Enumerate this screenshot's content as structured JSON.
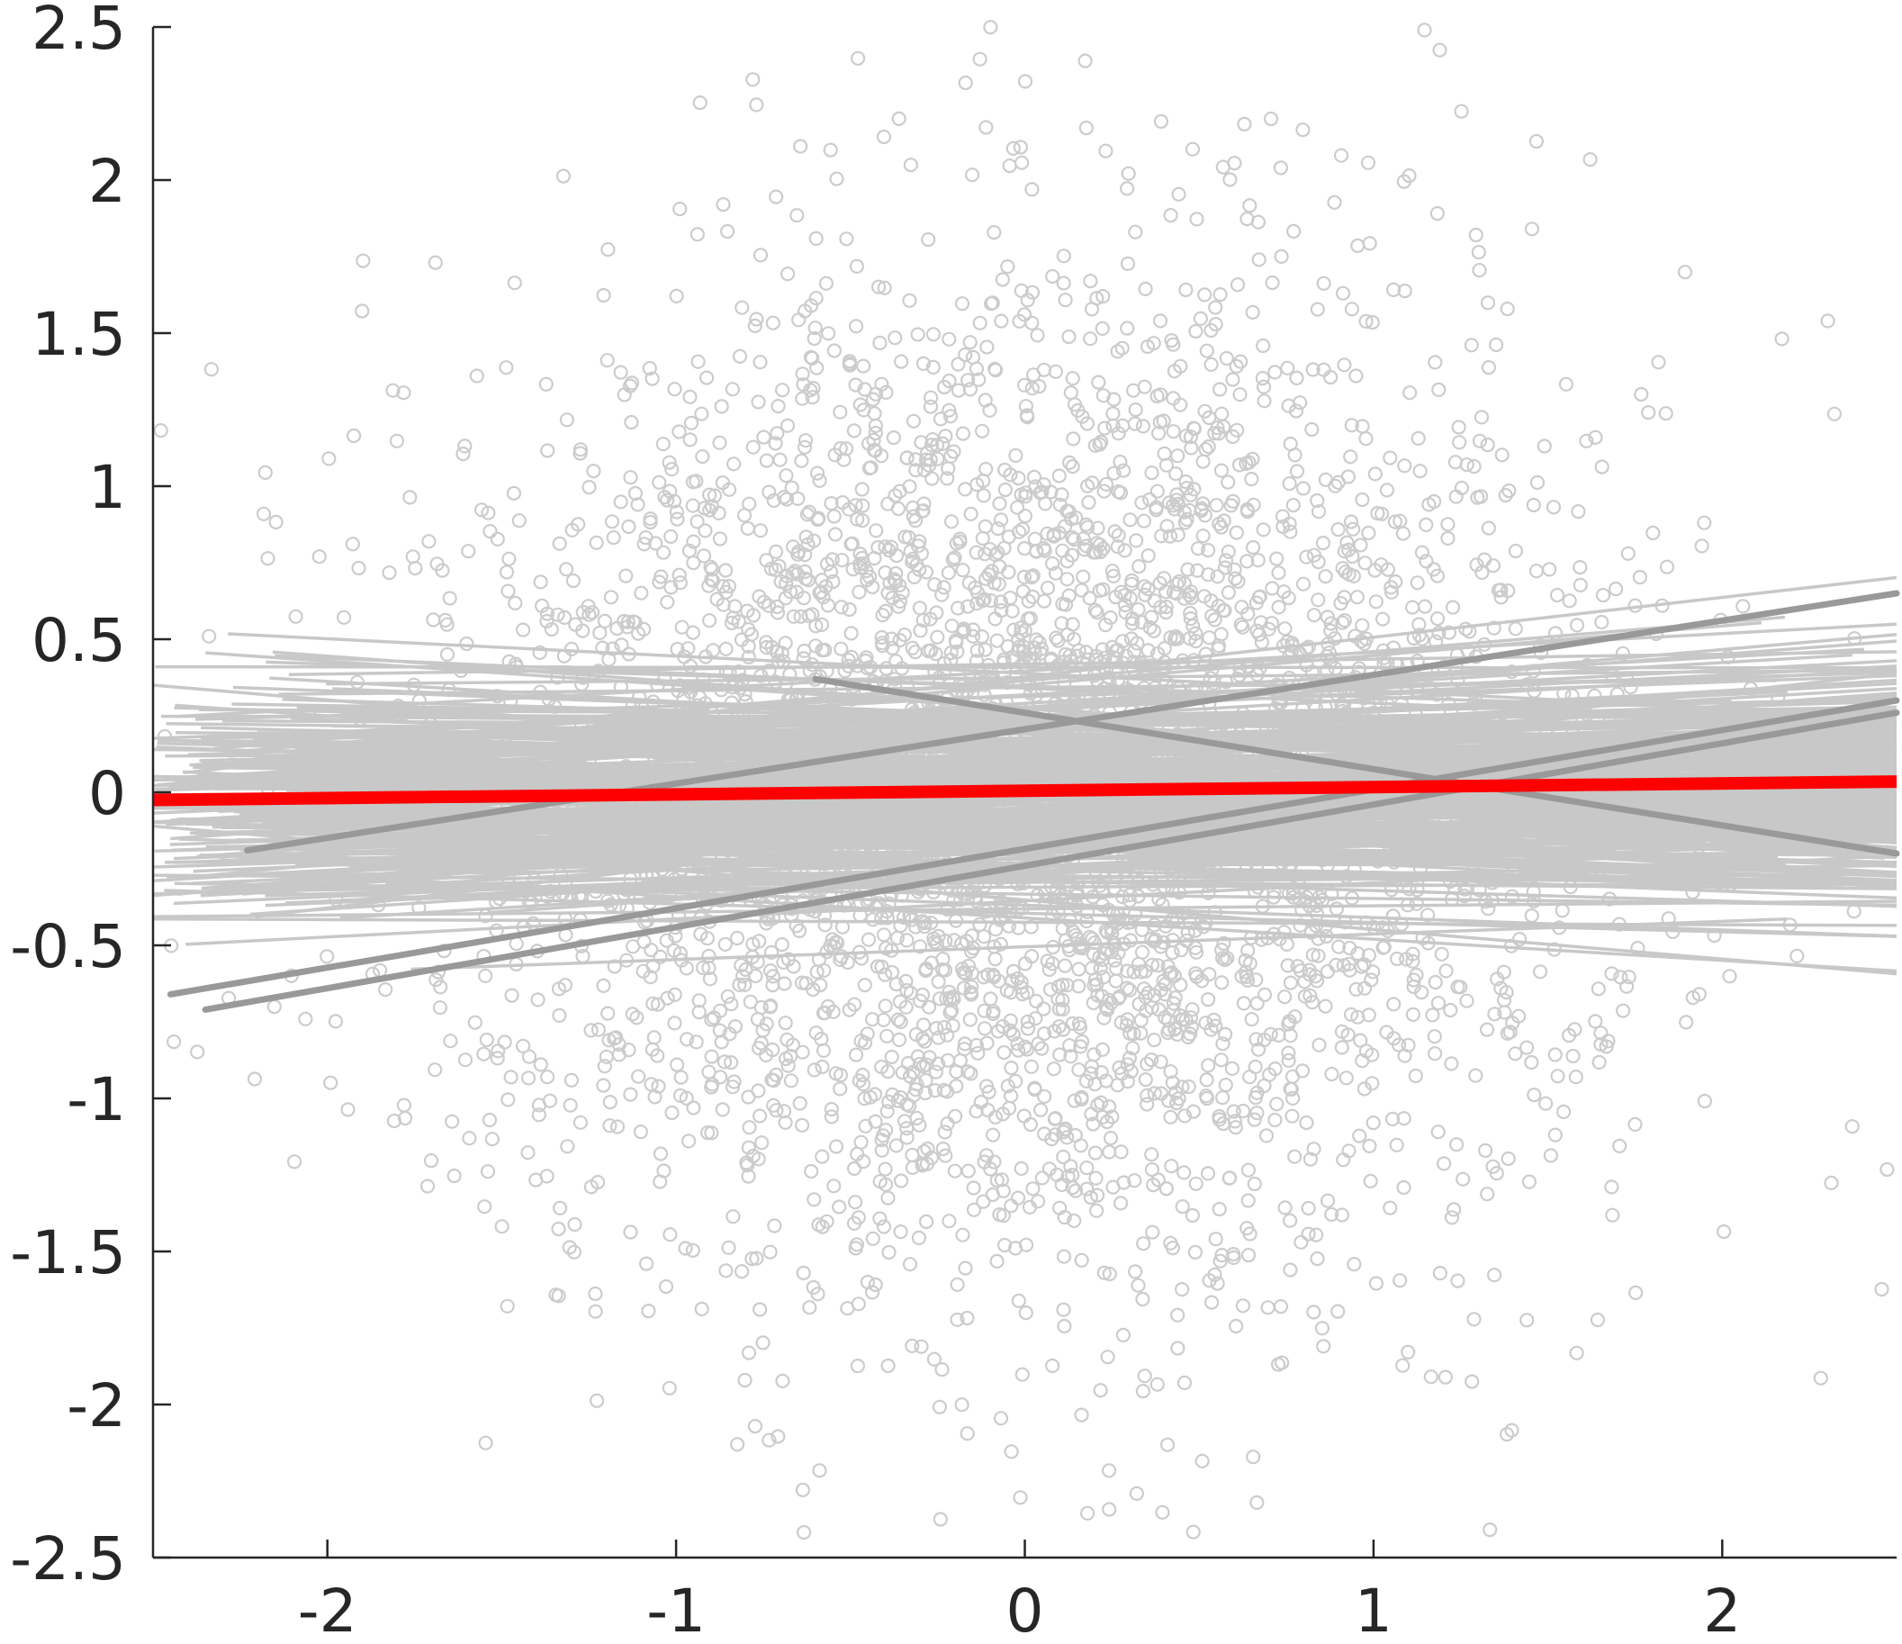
{
  "chart_data": {
    "type": "scatter",
    "title": "",
    "xlabel": "",
    "ylabel": "",
    "xlim": [
      -2.5,
      2.5
    ],
    "ylim": [
      -2.5,
      2.5
    ],
    "x_ticks": [
      -2,
      -1,
      0,
      1,
      2
    ],
    "x_tick_labels": [
      "-2",
      "-1",
      "0",
      "1",
      "2"
    ],
    "y_ticks": [
      -2.5,
      -2,
      -1.5,
      -1,
      -0.5,
      0,
      0.5,
      1,
      1.5,
      2,
      2.5
    ],
    "y_tick_labels": [
      "-2.5",
      "-2",
      "-1.5",
      "-1",
      "-0.5",
      "0",
      "0.5",
      "1",
      "1.5",
      "2",
      "2.5"
    ],
    "grid": false,
    "legend": "none",
    "scatter": {
      "point_count": 4000,
      "x_distribution": "normal, mean 0, sd 0.85",
      "y_distribution": "normal, mean 0, sd 0.85",
      "marker": "open-circle",
      "color": "#cccccc"
    },
    "fit_lines_light": {
      "count": 300,
      "color": "#c8c8c8",
      "intercept_range": [
        -0.45,
        0.45
      ],
      "slope_range": [
        -0.12,
        0.14
      ]
    },
    "fit_lines_dark": {
      "color": "#999999",
      "lines": [
        {
          "x": [
            -2.23,
            2.5
          ],
          "y": [
            -0.19,
            0.65
          ]
        },
        {
          "x": [
            -2.45,
            2.5
          ],
          "y": [
            -0.66,
            0.3
          ]
        },
        {
          "x": [
            -2.35,
            2.5
          ],
          "y": [
            -0.71,
            0.26
          ]
        },
        {
          "x": [
            -0.6,
            2.5
          ],
          "y": [
            0.37,
            -0.2
          ]
        }
      ]
    },
    "mean_line": {
      "color": "#ff0000",
      "x": [
        -2.5,
        2.5
      ],
      "y": [
        -0.025,
        0.035
      ]
    }
  }
}
